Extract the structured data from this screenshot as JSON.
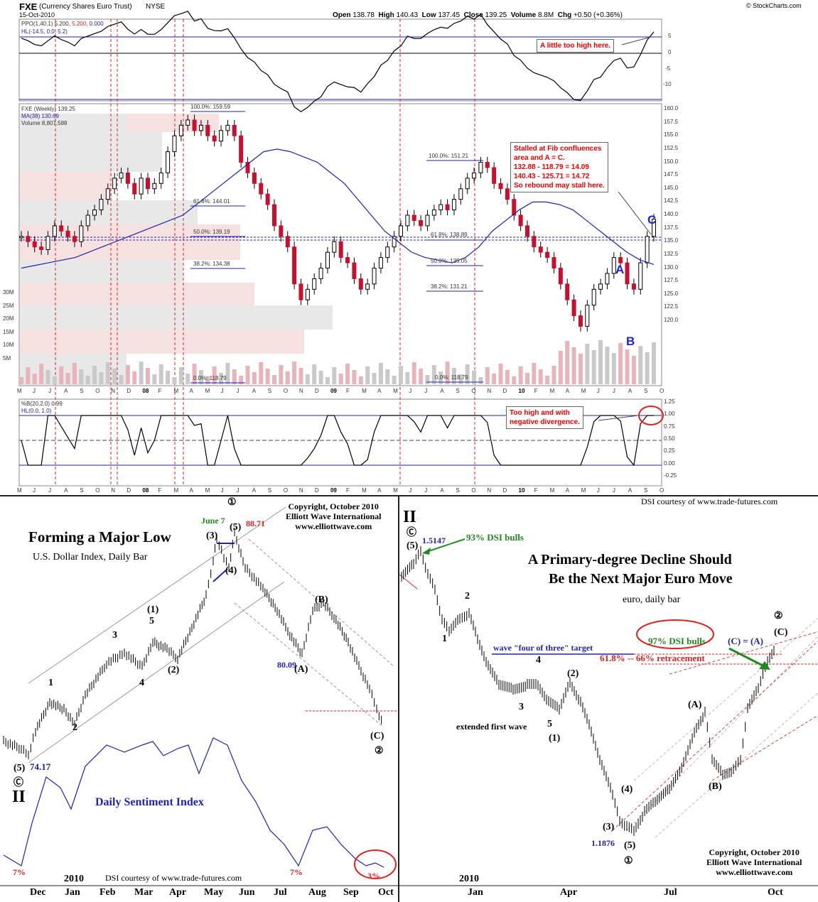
{
  "stockcharts": {
    "symbol": "FXE",
    "name": "(Currency Shares Euro Trust)",
    "exchange": "NYSE",
    "date": "15-Oct-2010",
    "watermark": "© StockCharts.com",
    "ohlc": {
      "open_label": "Open",
      "open": "138.78",
      "high_label": "High",
      "high": "140.43",
      "low_label": "Low",
      "low": "137.45",
      "close_label": "Close",
      "close": "139.25",
      "volume_label": "Volume",
      "volume": "8.8M",
      "chg_label": "Chg",
      "chg": "+0.50 (+0.36%)"
    },
    "ppo_panel": {
      "legend1": "PPO(1,40,1) 5.200,",
      "legend1b": "5.200,",
      "legend1c": "0.000",
      "legend2": "HL(-14.5, 0.0, 5.2)",
      "y_ticks": [
        "5",
        "0",
        "-5",
        "-10"
      ],
      "note": "A little too high here."
    },
    "price_panel": {
      "legend1": "FXE (Weekly) 139.25",
      "legend2": "MA(38) 130.69",
      "legend3": "Volume 8,807,588",
      "y_ticks": [
        "160.0",
        "157.5",
        "155.0",
        "152.5",
        "150.0",
        "147.5",
        "145.0",
        "142.5",
        "140.0",
        "137.5",
        "135.0",
        "132.5",
        "130.0",
        "127.5",
        "125.0",
        "122.5",
        "120.0"
      ],
      "vol_ticks": [
        "30M",
        "25M",
        "20M",
        "15M",
        "10M",
        "5M"
      ],
      "fib1": [
        "100.0%: 159.59",
        "61.8%: 144.01",
        "50.0%: 139.19",
        "38.2%: 134.38",
        "0.0%: 118.79"
      ],
      "fib2": [
        "100.0%: 151.21",
        "61.8%: 138.89",
        "50.0%: 135.05",
        "38.2%: 131.21",
        "0.0%: 118.79"
      ],
      "wave_labels": [
        "A",
        "B",
        "C"
      ],
      "note_lines": [
        "Stalled at Fib confluences",
        "area and A = C.",
        "132.88 - 118.79 = 14.09",
        "140.43 - 125.71 = 14.72",
        "So rebound may stall here."
      ]
    },
    "pctb_panel": {
      "legend1": "%B(20,2.0) 0.99",
      "legend2": "HL(0.0, 1.0)",
      "y_ticks": [
        "1.25",
        "1.00",
        "0.75",
        "0.50",
        "0.25",
        "0.00",
        "-0.25"
      ],
      "note_lines": [
        "Too high and with",
        "negative divergence."
      ]
    },
    "x_axis": [
      "M",
      "J",
      "J",
      "A",
      "S",
      "O",
      "N",
      "D",
      "08",
      "F",
      "M",
      "A",
      "M",
      "J",
      "J",
      "A",
      "S",
      "O",
      "N",
      "D",
      "09",
      "F",
      "M",
      "A",
      "M",
      "J",
      "J",
      "A",
      "S",
      "O",
      "N",
      "D",
      "10",
      "F",
      "M",
      "A",
      "M",
      "J",
      "J",
      "A",
      "S",
      "O"
    ],
    "series": {
      "price_weekly": [
        136,
        135,
        134,
        133.5,
        136,
        138,
        137,
        136,
        135,
        138,
        140,
        141,
        143,
        145,
        147,
        148,
        146,
        144,
        147,
        145,
        146,
        148,
        152,
        155,
        157,
        158,
        156,
        157,
        155,
        154,
        156,
        157,
        155,
        150,
        148,
        146,
        144,
        142,
        138,
        136,
        134,
        127,
        124,
        126,
        128,
        130,
        133,
        135,
        132,
        131,
        128,
        126,
        127,
        130,
        132,
        134,
        136,
        138,
        140,
        139,
        138,
        140,
        141,
        142,
        141,
        143,
        145,
        147,
        148,
        150,
        149,
        146,
        145,
        143,
        140,
        138,
        136,
        134,
        133,
        132,
        130,
        127,
        124,
        121,
        119,
        123,
        126,
        127,
        129,
        132,
        131,
        127,
        126,
        131,
        136,
        139.25
      ],
      "ma38": [
        130,
        130.5,
        131,
        131.5,
        132,
        133,
        134,
        135,
        136,
        137,
        138,
        139,
        140,
        142,
        144,
        146,
        148,
        150,
        152,
        152.5,
        152,
        151,
        150,
        148,
        146,
        143,
        140,
        137,
        135,
        133,
        132,
        131.5,
        131,
        132,
        134,
        137,
        139,
        141,
        142.5,
        142.5,
        142,
        141,
        139,
        137,
        135,
        133,
        131.5,
        130.7
      ]
    },
    "vlines_month_positions": "layout"
  },
  "ewi_left": {
    "title": "Forming a Major Low",
    "subtitle": "U.S. Dollar Index, Daily Bar",
    "copyright_lines": [
      "Copyright, October 2010",
      "Elliott Wave International",
      "www.elliottwave.com"
    ],
    "labels": {
      "june7": "June 7",
      "v8871": "88.71",
      "v7417": "74.17",
      "v8009": "80.09",
      "v7pct1": "7%",
      "v7pct2": "7%",
      "v3pct": "3%",
      "dsi": "Daily Sentiment Index",
      "year": "2010",
      "dsi_credit": "DSI courtesy of www.trade-futures.com"
    },
    "wave_labels": [
      "1",
      "2",
      "3",
      "4",
      "5",
      "(1)",
      "(2)",
      "(3)",
      "(4)",
      "(5)",
      "①",
      "(A)",
      "(B)",
      "(C)",
      "②",
      "(5)",
      "Ⓒ",
      "II"
    ],
    "x_axis": [
      "Dec",
      "Jan",
      "Feb",
      "Mar",
      "Apr",
      "May",
      "Jun",
      "Jul",
      "Aug",
      "Sep",
      "Oct"
    ]
  },
  "ewi_right": {
    "credit": "DSI courtesy of www.trade-futures.com",
    "title_lines": [
      "A Primary-degree Decline Should",
      "Be the Next Major Euro Move"
    ],
    "subtitle": "euro, daily bar",
    "dsi93": "93% DSI bulls",
    "dsi97": "97% DSI bulls",
    "ca": "(C) = (A)",
    "target": "wave \"four of three\" target",
    "retrace": "61.8% -- 66% retracement",
    "extended": "extended first wave",
    "v15147": "1.5147",
    "v11876": "1.1876",
    "year": "2010",
    "copyright_lines": [
      "Copyright, October 2010",
      "Elliott Wave International",
      "www.elliottwave.com"
    ],
    "wave_labels": [
      "II",
      "Ⓒ",
      "(5)",
      "1",
      "2",
      "3",
      "4",
      "5",
      "(1)",
      "(2)",
      "(3)",
      "(4)",
      "(5)",
      "①",
      "(A)",
      "(B)",
      "(C)",
      "②"
    ],
    "x_axis": [
      "Jan",
      "Apr",
      "Jul",
      "Oct"
    ]
  }
}
